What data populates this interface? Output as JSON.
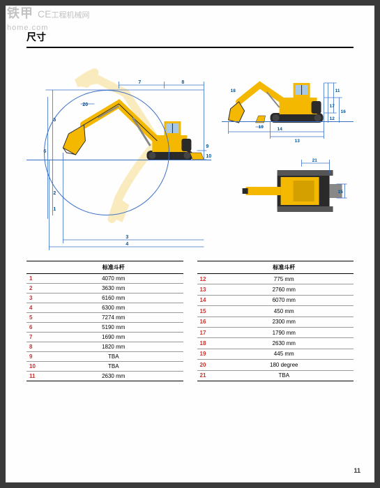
{
  "watermark": {
    "line1": "铁甲",
    "line2_a": "CE",
    "line2_b": "home.com",
    "line2_c": "工程机械网"
  },
  "title": "尺寸",
  "table_header_left": "标准斗杆",
  "table_header_right": "标准斗杆",
  "specs_left": [
    {
      "n": "1",
      "v": "4070 mm"
    },
    {
      "n": "2",
      "v": "3630 mm"
    },
    {
      "n": "3",
      "v": "6160 mm"
    },
    {
      "n": "4",
      "v": "6300 mm"
    },
    {
      "n": "5",
      "v": "7274 mm"
    },
    {
      "n": "6",
      "v": "5190 mm"
    },
    {
      "n": "7",
      "v": "1690 mm"
    },
    {
      "n": "8",
      "v": "1820 mm"
    },
    {
      "n": "9",
      "v": "TBA"
    },
    {
      "n": "10",
      "v": "TBA"
    },
    {
      "n": "11",
      "v": "2630 mm"
    }
  ],
  "specs_right": [
    {
      "n": "12",
      "v": "775 mm"
    },
    {
      "n": "13",
      "v": "2760 mm"
    },
    {
      "n": "14",
      "v": "6070 mm"
    },
    {
      "n": "15",
      "v": "450 mm"
    },
    {
      "n": "16",
      "v": "2300 mm"
    },
    {
      "n": "17",
      "v": "1790 mm"
    },
    {
      "n": "18",
      "v": "2630 mm"
    },
    {
      "n": "19",
      "v": "445 mm"
    },
    {
      "n": "20",
      "v": "180 degree"
    },
    {
      "n": "21",
      "v": "TBA"
    }
  ],
  "page_num": "11",
  "colors": {
    "excavator_yellow": "#f5b800",
    "excavator_dark": "#2a2a2a",
    "dim_line": "#3a6fc9",
    "dim_text": "#005599",
    "row_num": "#c9302c",
    "ghost": "#f5d980"
  },
  "dim_labels": {
    "d1": "1",
    "d2": "2",
    "d3": "3",
    "d4": "4",
    "d5": "5",
    "d6": "6",
    "d7": "7",
    "d8": "8",
    "d9": "9",
    "d10": "10",
    "d20": "20",
    "d11": "11",
    "d12": "12",
    "d13": "13",
    "d14": "14",
    "d15": "15",
    "d16": "16",
    "d17": "17",
    "d18": "18",
    "d19": "19",
    "d21": "21"
  }
}
